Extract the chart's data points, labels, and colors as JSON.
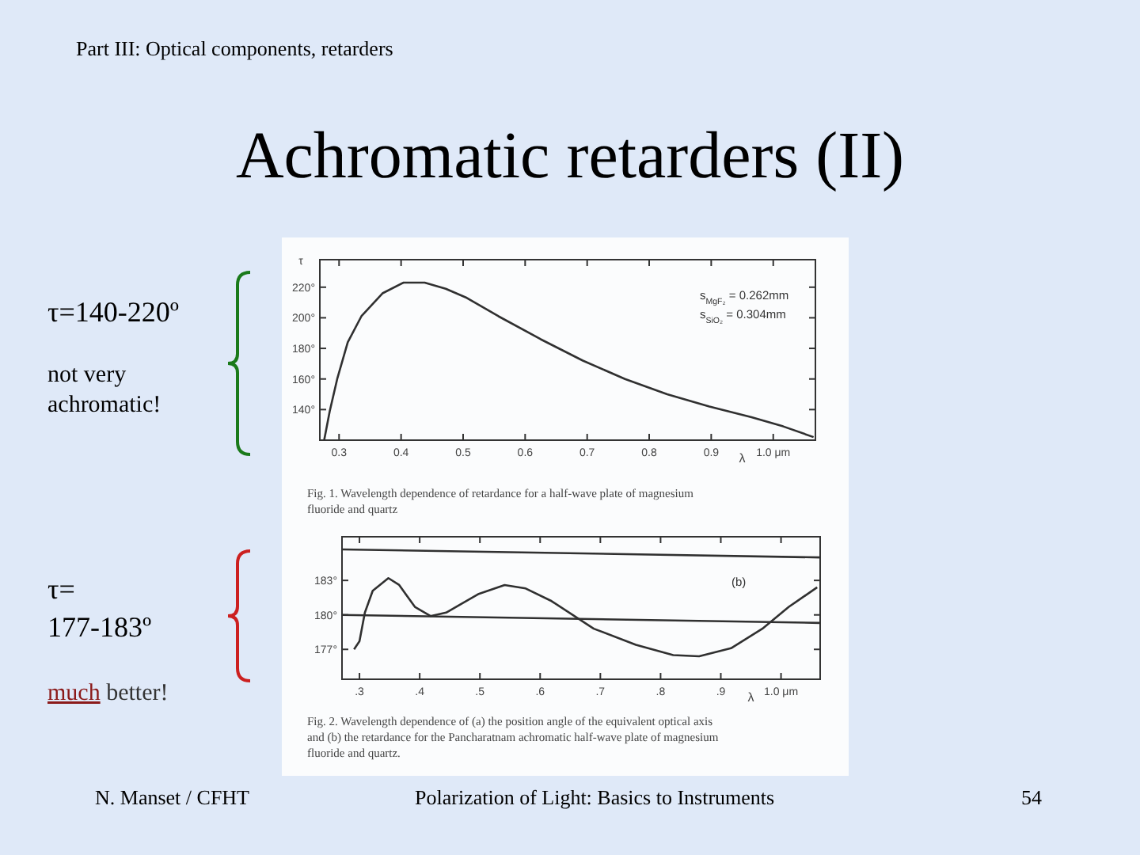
{
  "chart_data": [
    {
      "type": "other",
      "title": "Achromatic retarders (II)",
      "subtitle": "Part III: Optical components, retarders",
      "annotations": [
        "τ=140-220º",
        "not very achromatic!",
        "τ= 177-183º",
        "much better!",
        "N. Manset / CFHT",
        "Polarization of Light: Basics to Instruments",
        "54"
      ]
    },
    {
      "type": "line",
      "xlabel": "λ",
      "ylabel": "τ",
      "xlim": [
        0.269,
        1.068
      ],
      "ylim": [
        120,
        238
      ],
      "xticks": [
        {
          "value": 0.3,
          "label": "0.3"
        },
        {
          "value": 0.4,
          "label": "0.4"
        },
        {
          "value": 0.5,
          "label": "0.5"
        },
        {
          "value": 0.6,
          "label": "0.6"
        },
        {
          "value": 0.7,
          "label": "0.7"
        },
        {
          "value": 0.8,
          "label": "0.8"
        },
        {
          "value": 0.9,
          "label": "0.9"
        },
        {
          "value": 1.0,
          "label": "1.0 μm"
        }
      ],
      "yticks": [
        {
          "value": 140,
          "label": "140°"
        },
        {
          "value": 160,
          "label": "160°"
        },
        {
          "value": 180,
          "label": "180°"
        },
        {
          "value": 200,
          "label": "200°"
        },
        {
          "value": 220,
          "label": "220°"
        }
      ],
      "series": [
        {
          "color": "#303030",
          "x": [
            0.276,
            0.285,
            0.297,
            0.314,
            0.336,
            0.37,
            0.404,
            0.438,
            0.472,
            0.506,
            0.557,
            0.625,
            0.693,
            0.761,
            0.829,
            0.897,
            0.965,
            1.016,
            1.065
          ],
          "values": [
            120,
            139,
            160,
            184,
            201,
            216,
            223,
            223,
            219,
            213,
            201,
            186,
            172,
            160,
            150,
            142,
            135,
            129,
            122
          ]
        }
      ],
      "annotations": [
        "s$_{MgF₂}$ = 0.262mm",
        "s$_{SiO₂}$ = 0.304mm",
        "Fig. 1.   Wavelength dependence of retardance for a half-wave plate of magnesium fluoride and quartz"
      ]
    },
    {
      "type": "line",
      "xlabel": "λ",
      "xlim": [
        0.271,
        1.065
      ],
      "ylim": [
        174.4,
        186.8
      ],
      "xticks": [
        {
          "value": 0.3,
          "label": ".3"
        },
        {
          "value": 0.4,
          "label": ".4"
        },
        {
          "value": 0.5,
          "label": ".5"
        },
        {
          "value": 0.6,
          "label": ".6"
        },
        {
          "value": 0.7,
          "label": ".7"
        },
        {
          "value": 0.8,
          "label": ".8"
        },
        {
          "value": 0.9,
          "label": ".9"
        },
        {
          "value": 1.0,
          "label": "1.0 μm"
        }
      ],
      "yticks": [
        {
          "value": 177,
          "label": "177°"
        },
        {
          "value": 180,
          "label": "180°"
        },
        {
          "value": 183,
          "label": "183°"
        }
      ],
      "series": [
        {
          "color": "#303030",
          "x": [
            0.291,
            0.3,
            0.309,
            0.322,
            0.348,
            0.366,
            0.392,
            0.418,
            0.444,
            0.497,
            0.541,
            0.576,
            0.619,
            0.689,
            0.759,
            0.821,
            0.864,
            0.917,
            0.969,
            1.013,
            1.06
          ],
          "values": [
            177.0,
            177.7,
            180.2,
            182.1,
            183.2,
            182.6,
            180.7,
            179.9,
            180.2,
            181.8,
            182.6,
            182.3,
            181.2,
            178.8,
            177.4,
            176.5,
            176.4,
            177.1,
            178.8,
            180.7,
            182.4
          ]
        },
        {
          "color": "#303030",
          "x": [
            0.271,
            1.065
          ],
          "values": [
            180.0,
            179.3
          ]
        },
        {
          "color": "#303030",
          "x": [
            0.271,
            1.065
          ],
          "values": [
            185.7,
            185.0
          ]
        }
      ],
      "annotations": [
        "(b)",
        "Fig. 2.   Wavelength dependence of (a) the position angle of the equivalent optical axis and (b) the retardance for the Pancharatnam achromatic half-wave plate of magnesium fluoride and quartz."
      ]
    }
  ]
}
